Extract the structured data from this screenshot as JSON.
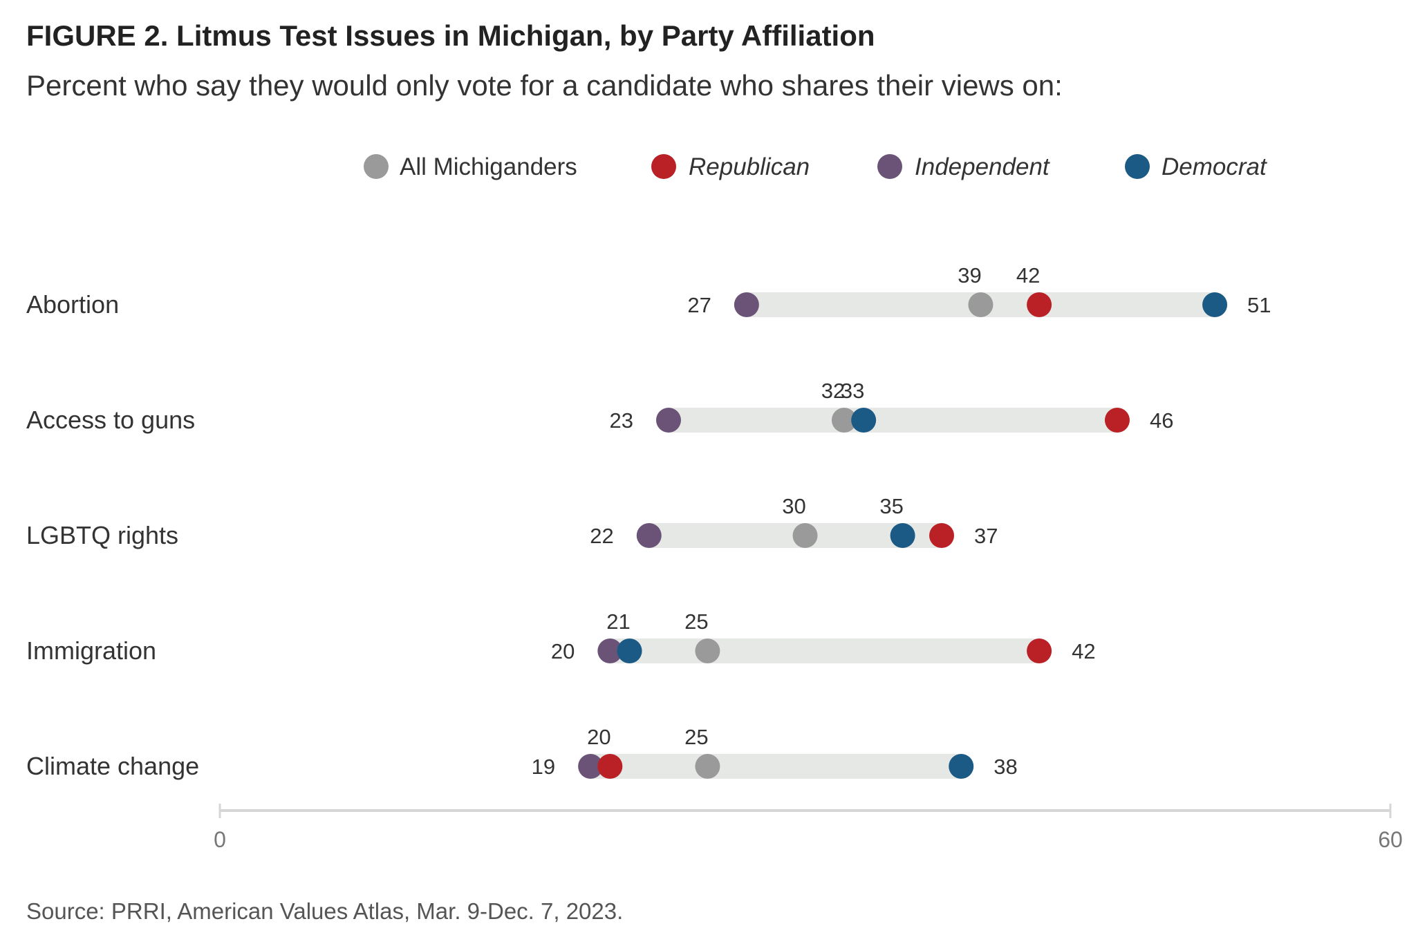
{
  "title": "FIGURE 2. Litmus Test Issues in Michigan, by Party Affiliation",
  "subtitle": "Percent who say they would only vote for a candidate who shares their views on:",
  "source": "Source: PRRI, American Values Atlas, Mar. 9-Dec. 7, 2023.",
  "chart_data": {
    "type": "dot",
    "xlim": [
      0,
      60
    ],
    "ticks": [
      "0",
      "60"
    ],
    "grid": false,
    "legend_position": "top",
    "series": [
      {
        "key": "all",
        "name": "All Michiganders",
        "color": "#9a9a9a",
        "italic": false
      },
      {
        "key": "rep",
        "name": "Republican",
        "color": "#b92127",
        "italic": true
      },
      {
        "key": "ind",
        "name": "Independent",
        "color": "#6a5377",
        "italic": true
      },
      {
        "key": "dem",
        "name": "Democrat",
        "color": "#1b5a85",
        "italic": true
      }
    ],
    "categories": [
      "Abortion",
      "Access to guns",
      "LGBTQ rights",
      "Immigration",
      "Climate change"
    ],
    "values": {
      "all": [
        39,
        32,
        30,
        25,
        25
      ],
      "rep": [
        42,
        46,
        37,
        42,
        20
      ],
      "ind": [
        27,
        23,
        22,
        20,
        19
      ],
      "dem": [
        51,
        33,
        35,
        21,
        38
      ]
    },
    "range_bar_color": "#e6e8e6"
  }
}
